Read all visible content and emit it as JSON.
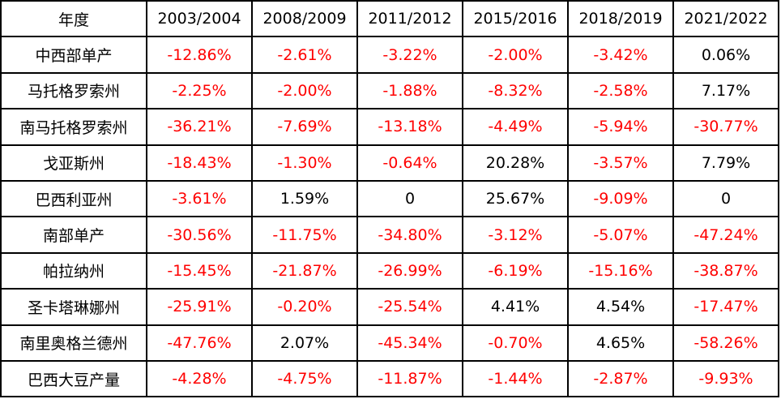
{
  "chart_data": {
    "type": "table",
    "header": "年度",
    "columns": [
      "2003/2004",
      "2008/2009",
      "2011/2012",
      "2015/2016",
      "2018/2019",
      "2021/2022"
    ],
    "rows": [
      {
        "label": "中西部单产",
        "values": [
          "-12.86%",
          "-2.61%",
          "-3.22%",
          "-2.00%",
          "-3.42%",
          "0.06%"
        ]
      },
      {
        "label": "马托格罗索州",
        "values": [
          "-2.25%",
          "-2.00%",
          "-1.88%",
          "-8.32%",
          "-2.58%",
          "7.17%"
        ]
      },
      {
        "label": "南马托格罗索州",
        "values": [
          "-36.21%",
          "-7.69%",
          "-13.18%",
          "-4.49%",
          "-5.94%",
          "-30.77%"
        ]
      },
      {
        "label": "戈亚斯州",
        "values": [
          "-18.43%",
          "-1.30%",
          "-0.64%",
          "20.28%",
          "-3.57%",
          "7.79%"
        ]
      },
      {
        "label": "巴西利亚州",
        "values": [
          "-3.61%",
          "1.59%",
          "0",
          "25.67%",
          "-9.09%",
          "0"
        ]
      },
      {
        "label": "南部单产",
        "values": [
          "-30.56%",
          "-11.75%",
          "-34.80%",
          "-3.12%",
          "-5.07%",
          "-47.24%"
        ]
      },
      {
        "label": "帕拉纳州",
        "values": [
          "-15.45%",
          "-21.87%",
          "-26.99%",
          "-6.19%",
          "-15.16%",
          "-38.87%"
        ]
      },
      {
        "label": "圣卡塔琳娜州",
        "values": [
          "-25.91%",
          "-0.20%",
          "-25.54%",
          "4.41%",
          "4.54%",
          "-17.47%"
        ]
      },
      {
        "label": "南里奥格兰德州",
        "values": [
          "-47.76%",
          "2.07%",
          "-45.34%",
          "-0.70%",
          "4.65%",
          "-58.26%"
        ]
      },
      {
        "label": "巴西大豆产量",
        "values": [
          "-4.28%",
          "-4.75%",
          "-11.87%",
          "-1.44%",
          "-2.87%",
          "-9.93%"
        ]
      }
    ],
    "colors": {
      "negative": "#ff0000",
      "non_negative": "#000000",
      "border": "#000000",
      "background": "#ffffff"
    }
  }
}
